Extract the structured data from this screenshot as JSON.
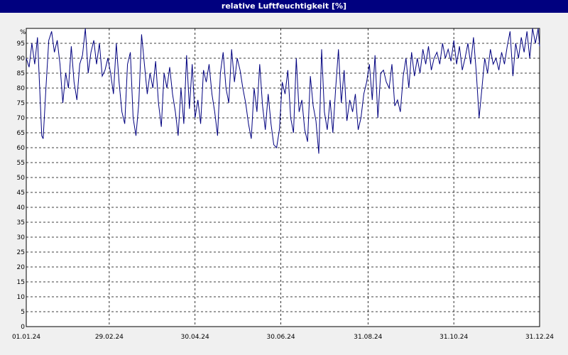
{
  "chart_data": {
    "type": "line",
    "title": "relative Luftfeuchtigkeit [%]",
    "unit_label": "%",
    "ylim": [
      0,
      100
    ],
    "y_ticks": [
      0,
      5,
      10,
      15,
      20,
      25,
      30,
      35,
      40,
      45,
      50,
      55,
      60,
      65,
      70,
      75,
      80,
      85,
      90,
      95
    ],
    "y_tick_labels": [
      "0",
      "5",
      "10",
      "15",
      "20",
      "25",
      "30",
      "35",
      "40",
      "45",
      "50",
      "55",
      "60",
      "65",
      "70",
      "75",
      "80",
      "85",
      "90",
      "95"
    ],
    "x_ticks": [
      "2024-01-01",
      "2024-02-29",
      "2024-04-30",
      "2024-06-30",
      "2024-08-31",
      "2024-10-31",
      "2024-12-31"
    ],
    "x_tick_labels": [
      "01.01.24",
      "29.02.24",
      "30.04.24",
      "30.06.24",
      "31.08.24",
      "31.10.24",
      "31.12.24"
    ],
    "x_range": [
      "2024-01-01",
      "2024-12-31"
    ],
    "grid": true,
    "line_color": "#00007f",
    "series": [
      {
        "points": [
          [
            "2024-01-01",
            90
          ],
          [
            "2024-01-03",
            87
          ],
          [
            "2024-01-05",
            95
          ],
          [
            "2024-01-07",
            88
          ],
          [
            "2024-01-09",
            97
          ],
          [
            "2024-01-11",
            75
          ],
          [
            "2024-01-12",
            64
          ],
          [
            "2024-01-13",
            63
          ],
          [
            "2024-01-15",
            80
          ],
          [
            "2024-01-17",
            96
          ],
          [
            "2024-01-19",
            99
          ],
          [
            "2024-01-21",
            92
          ],
          [
            "2024-01-23",
            96
          ],
          [
            "2024-01-25",
            88
          ],
          [
            "2024-01-27",
            75
          ],
          [
            "2024-01-29",
            85
          ],
          [
            "2024-01-31",
            80
          ],
          [
            "2024-02-02",
            94
          ],
          [
            "2024-02-04",
            82
          ],
          [
            "2024-02-06",
            76
          ],
          [
            "2024-02-08",
            88
          ],
          [
            "2024-02-10",
            91
          ],
          [
            "2024-02-12",
            100
          ],
          [
            "2024-02-14",
            85
          ],
          [
            "2024-02-16",
            92
          ],
          [
            "2024-02-18",
            96
          ],
          [
            "2024-02-20",
            88
          ],
          [
            "2024-02-22",
            95
          ],
          [
            "2024-02-24",
            84
          ],
          [
            "2024-02-26",
            86
          ],
          [
            "2024-02-28",
            90
          ],
          [
            "2024-03-01",
            85
          ],
          [
            "2024-03-03",
            78
          ],
          [
            "2024-03-05",
            95
          ],
          [
            "2024-03-07",
            82
          ],
          [
            "2024-03-09",
            72
          ],
          [
            "2024-03-11",
            68
          ],
          [
            "2024-03-13",
            88
          ],
          [
            "2024-03-15",
            92
          ],
          [
            "2024-03-17",
            70
          ],
          [
            "2024-03-19",
            64
          ],
          [
            "2024-03-21",
            75
          ],
          [
            "2024-03-23",
            98
          ],
          [
            "2024-03-25",
            88
          ],
          [
            "2024-03-27",
            78
          ],
          [
            "2024-03-29",
            85
          ],
          [
            "2024-03-31",
            80
          ],
          [
            "2024-04-02",
            89
          ],
          [
            "2024-04-04",
            75
          ],
          [
            "2024-04-06",
            67
          ],
          [
            "2024-04-08",
            85
          ],
          [
            "2024-04-10",
            80
          ],
          [
            "2024-04-12",
            87
          ],
          [
            "2024-04-14",
            78
          ],
          [
            "2024-04-16",
            72
          ],
          [
            "2024-04-18",
            64
          ],
          [
            "2024-04-20",
            80
          ],
          [
            "2024-04-22",
            68
          ],
          [
            "2024-04-24",
            91
          ],
          [
            "2024-04-26",
            73
          ],
          [
            "2024-04-28",
            88
          ],
          [
            "2024-04-30",
            70
          ],
          [
            "2024-05-02",
            76
          ],
          [
            "2024-05-04",
            68
          ],
          [
            "2024-05-06",
            86
          ],
          [
            "2024-05-08",
            82
          ],
          [
            "2024-05-10",
            88
          ],
          [
            "2024-05-12",
            78
          ],
          [
            "2024-05-14",
            72
          ],
          [
            "2024-05-16",
            64
          ],
          [
            "2024-05-18",
            85
          ],
          [
            "2024-05-20",
            92
          ],
          [
            "2024-05-22",
            80
          ],
          [
            "2024-05-24",
            75
          ],
          [
            "2024-05-26",
            93
          ],
          [
            "2024-05-28",
            82
          ],
          [
            "2024-05-30",
            90
          ],
          [
            "2024-06-01",
            86
          ],
          [
            "2024-06-03",
            80
          ],
          [
            "2024-06-05",
            75
          ],
          [
            "2024-06-07",
            68
          ],
          [
            "2024-06-09",
            63
          ],
          [
            "2024-06-11",
            80
          ],
          [
            "2024-06-13",
            72
          ],
          [
            "2024-06-15",
            88
          ],
          [
            "2024-06-17",
            74
          ],
          [
            "2024-06-19",
            66
          ],
          [
            "2024-06-21",
            78
          ],
          [
            "2024-06-23",
            68
          ],
          [
            "2024-06-25",
            61
          ],
          [
            "2024-06-27",
            60
          ],
          [
            "2024-06-29",
            66
          ],
          [
            "2024-07-01",
            82
          ],
          [
            "2024-07-03",
            78
          ],
          [
            "2024-07-05",
            86
          ],
          [
            "2024-07-07",
            70
          ],
          [
            "2024-07-09",
            65
          ],
          [
            "2024-07-11",
            90
          ],
          [
            "2024-07-13",
            72
          ],
          [
            "2024-07-15",
            76
          ],
          [
            "2024-07-17",
            66
          ],
          [
            "2024-07-19",
            62
          ],
          [
            "2024-07-21",
            84
          ],
          [
            "2024-07-23",
            74
          ],
          [
            "2024-07-25",
            69
          ],
          [
            "2024-07-27",
            58
          ],
          [
            "2024-07-29",
            93
          ],
          [
            "2024-07-31",
            72
          ],
          [
            "2024-08-02",
            66
          ],
          [
            "2024-08-04",
            76
          ],
          [
            "2024-08-06",
            65
          ],
          [
            "2024-08-08",
            80
          ],
          [
            "2024-08-10",
            93
          ],
          [
            "2024-08-12",
            75
          ],
          [
            "2024-08-14",
            86
          ],
          [
            "2024-08-16",
            69
          ],
          [
            "2024-08-18",
            76
          ],
          [
            "2024-08-20",
            72
          ],
          [
            "2024-08-22",
            78
          ],
          [
            "2024-08-24",
            66
          ],
          [
            "2024-08-26",
            70
          ],
          [
            "2024-08-28",
            78
          ],
          [
            "2024-08-30",
            82
          ],
          [
            "2024-09-01",
            88
          ],
          [
            "2024-09-03",
            76
          ],
          [
            "2024-09-05",
            91
          ],
          [
            "2024-09-07",
            70
          ],
          [
            "2024-09-09",
            85
          ],
          [
            "2024-09-11",
            86
          ],
          [
            "2024-09-13",
            82
          ],
          [
            "2024-09-15",
            80
          ],
          [
            "2024-09-17",
            88
          ],
          [
            "2024-09-19",
            74
          ],
          [
            "2024-09-21",
            76
          ],
          [
            "2024-09-23",
            72
          ],
          [
            "2024-09-25",
            84
          ],
          [
            "2024-09-27",
            90
          ],
          [
            "2024-09-29",
            80
          ],
          [
            "2024-10-01",
            92
          ],
          [
            "2024-10-03",
            84
          ],
          [
            "2024-10-05",
            90
          ],
          [
            "2024-10-07",
            85
          ],
          [
            "2024-10-09",
            93
          ],
          [
            "2024-10-11",
            88
          ],
          [
            "2024-10-13",
            94
          ],
          [
            "2024-10-15",
            86
          ],
          [
            "2024-10-17",
            90
          ],
          [
            "2024-10-19",
            92
          ],
          [
            "2024-10-21",
            88
          ],
          [
            "2024-10-23",
            95
          ],
          [
            "2024-10-25",
            90
          ],
          [
            "2024-10-27",
            93
          ],
          [
            "2024-10-29",
            89
          ],
          [
            "2024-10-31",
            96
          ],
          [
            "2024-11-02",
            88
          ],
          [
            "2024-11-04",
            94
          ],
          [
            "2024-11-06",
            86
          ],
          [
            "2024-11-08",
            90
          ],
          [
            "2024-11-10",
            95
          ],
          [
            "2024-11-12",
            88
          ],
          [
            "2024-11-14",
            97
          ],
          [
            "2024-11-16",
            85
          ],
          [
            "2024-11-18",
            70
          ],
          [
            "2024-11-20",
            80
          ],
          [
            "2024-11-22",
            90
          ],
          [
            "2024-11-24",
            85
          ],
          [
            "2024-11-26",
            93
          ],
          [
            "2024-11-28",
            88
          ],
          [
            "2024-11-30",
            90
          ],
          [
            "2024-12-02",
            86
          ],
          [
            "2024-12-04",
            92
          ],
          [
            "2024-12-06",
            88
          ],
          [
            "2024-12-08",
            94
          ],
          [
            "2024-12-10",
            99
          ],
          [
            "2024-12-12",
            84
          ],
          [
            "2024-12-14",
            95
          ],
          [
            "2024-12-16",
            90
          ],
          [
            "2024-12-18",
            97
          ],
          [
            "2024-12-20",
            92
          ],
          [
            "2024-12-22",
            99
          ],
          [
            "2024-12-24",
            90
          ],
          [
            "2024-12-26",
            100
          ],
          [
            "2024-12-28",
            95
          ],
          [
            "2024-12-30",
            100
          ],
          [
            "2024-12-31",
            94
          ]
        ]
      }
    ]
  }
}
